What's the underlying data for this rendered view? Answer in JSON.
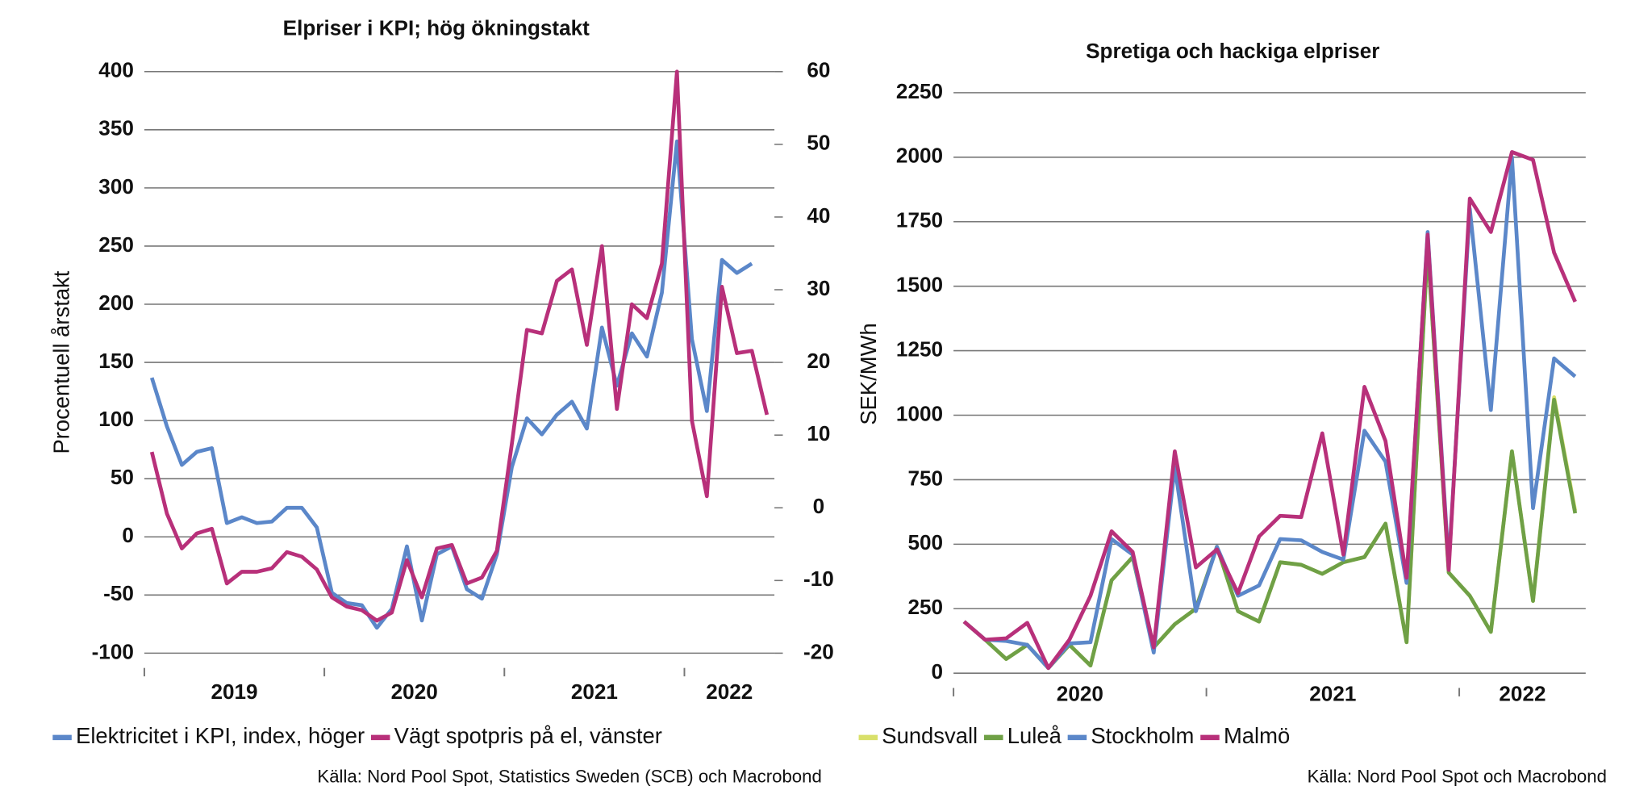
{
  "chart_data": [
    {
      "type": "line",
      "title": "Elpriser i KPI; hög ökningstakt",
      "ylabel": "Procentuell årstakt",
      "source": "Källa: Nord Pool Spot, Statistics Sweden (SCB) och Macrobond",
      "categories": [
        "2019",
        null,
        null,
        null,
        null,
        null,
        null,
        null,
        null,
        null,
        null,
        null,
        "2020",
        null,
        null,
        null,
        null,
        null,
        null,
        null,
        null,
        null,
        null,
        null,
        "2021",
        null,
        null,
        null,
        null,
        null,
        null,
        null,
        null,
        null,
        null,
        null,
        "2022",
        null,
        null,
        null,
        null,
        null
      ],
      "ylim": [
        -100,
        400
      ],
      "yticks": [
        -100,
        -50,
        0,
        50,
        100,
        150,
        200,
        250,
        300,
        350,
        400
      ],
      "y2lim": [
        -20,
        60
      ],
      "y2ticks": [
        -20,
        -10,
        0,
        10,
        20,
        30,
        40,
        50,
        60
      ],
      "grid": true,
      "series": [
        {
          "name": "Elektricitet i KPI, index, höger",
          "color": "#5b87c9",
          "axis": "y2",
          "values": [
            17.9,
            11.2,
            5.9,
            7.7,
            8.2,
            -2.1,
            -1.3,
            -2.1,
            -1.9,
            0,
            0,
            -2.7,
            -11.7,
            -13.1,
            -13.4,
            -16.5,
            -13.9,
            -5.3,
            -15.5,
            -6.4,
            -5.3,
            -11.2,
            -12.5,
            -6.4,
            5.6,
            12.3,
            10.1,
            12.8,
            14.6,
            10.9,
            24.8,
            16.8,
            24,
            20.8,
            29.6,
            50.4,
            23.2,
            13.3,
            34.1,
            32.3,
            33.6,
            null
          ]
        },
        {
          "name": "Vägt spotpris på el, vänster",
          "color": "#b8307a",
          "values": [
            73,
            20,
            -10,
            3,
            7,
            -40,
            -30,
            -30,
            -27,
            -13,
            -17,
            -28,
            -52,
            -60,
            -63,
            -72,
            -65,
            -20,
            -52,
            -10,
            -7,
            -40,
            -35,
            -12,
            80,
            178,
            175,
            220,
            230,
            165,
            250,
            110,
            200,
            188,
            235,
            400,
            100,
            35,
            215,
            158,
            160,
            105
          ]
        }
      ]
    },
    {
      "type": "line",
      "title": "Spretiga och hackiga elpriser",
      "ylabel": "SEK/MWh",
      "source": "Källa: Nord Pool Spot och Macrobond",
      "categories": [
        "2020",
        null,
        null,
        null,
        null,
        null,
        null,
        null,
        null,
        null,
        null,
        null,
        "2021",
        null,
        null,
        null,
        null,
        null,
        null,
        null,
        null,
        null,
        null,
        null,
        "2022",
        null,
        null,
        null,
        null,
        null
      ],
      "ylim": [
        0,
        2250
      ],
      "yticks": [
        0,
        250,
        500,
        750,
        1000,
        1250,
        1500,
        1750,
        2000,
        2250
      ],
      "grid": true,
      "series": [
        {
          "name": "Sundsvall",
          "color": "#d9e06a",
          "values": [
            200,
            130,
            55,
            110,
            20,
            110,
            30,
            360,
            450,
            100,
            190,
            250,
            490,
            240,
            200,
            430,
            420,
            385,
            430,
            450,
            580,
            120,
            1650,
            390,
            300,
            160,
            860,
            280,
            1070,
            630
          ]
        },
        {
          "name": "Luleå",
          "color": "#6fa046",
          "values": [
            200,
            130,
            55,
            110,
            20,
            110,
            30,
            360,
            450,
            100,
            190,
            250,
            490,
            240,
            200,
            430,
            420,
            385,
            430,
            450,
            580,
            120,
            1650,
            390,
            300,
            160,
            860,
            280,
            1060,
            620
          ]
        },
        {
          "name": "Stockholm",
          "color": "#5b87c9",
          "values": [
            200,
            130,
            125,
            110,
            20,
            115,
            120,
            520,
            460,
            80,
            800,
            240,
            490,
            300,
            340,
            520,
            515,
            470,
            440,
            940,
            820,
            350,
            1710,
            420,
            1800,
            1020,
            2000,
            640,
            1220,
            1150
          ]
        },
        {
          "name": "Malmö",
          "color": "#b8307a",
          "values": [
            200,
            130,
            135,
            195,
            20,
            130,
            300,
            550,
            470,
            100,
            860,
            410,
            480,
            310,
            530,
            610,
            605,
            930,
            460,
            1110,
            900,
            370,
            1700,
            400,
            1840,
            1710,
            2020,
            1990,
            1630,
            1440
          ]
        }
      ]
    }
  ]
}
